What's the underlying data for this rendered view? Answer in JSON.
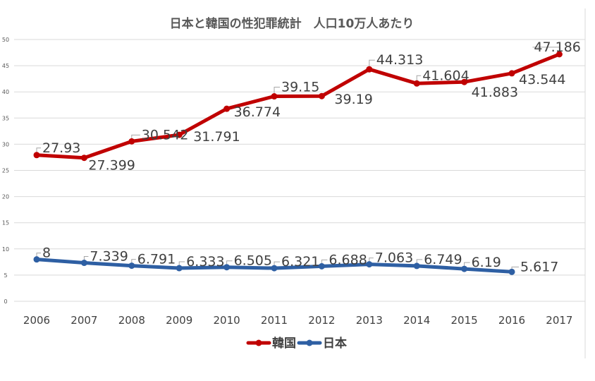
{
  "chart_data": {
    "type": "line",
    "title": "日本と韓国の性犯罪統計　人口10万人あたり",
    "categories": [
      "2006",
      "2007",
      "2008",
      "2009",
      "2010",
      "2011",
      "2012",
      "2013",
      "2014",
      "2015",
      "2016",
      "2017"
    ],
    "ylim": [
      0,
      50
    ],
    "yticks": [
      "0",
      "5",
      "10",
      "15",
      "20",
      "25",
      "30",
      "35",
      "40",
      "45",
      "50"
    ],
    "grid": true,
    "legend_position": "bottom",
    "series": [
      {
        "name": "韓国",
        "color": "#c00000",
        "values": [
          27.93,
          27.399,
          30.542,
          31.791,
          36.774,
          39.15,
          39.19,
          44.313,
          41.604,
          41.883,
          43.544,
          47.186
        ],
        "labels": [
          "27.93",
          "27.399",
          "30.542",
          "31.791",
          "36.774",
          "39.15",
          "39.19",
          "44.313",
          "41.604",
          "41.883",
          "43.544",
          "47.186"
        ]
      },
      {
        "name": "日本",
        "color": "#2e5fa3",
        "values": [
          8,
          7.339,
          6.791,
          6.333,
          6.505,
          6.321,
          6.688,
          7.063,
          6.749,
          6.19,
          5.617,
          null
        ],
        "labels": [
          "8",
          "7.339",
          "6.791",
          "6.333",
          "6.505",
          "6.321",
          "6.688",
          "7.063",
          "6.749",
          "6.19",
          "5.617",
          ""
        ]
      }
    ]
  }
}
